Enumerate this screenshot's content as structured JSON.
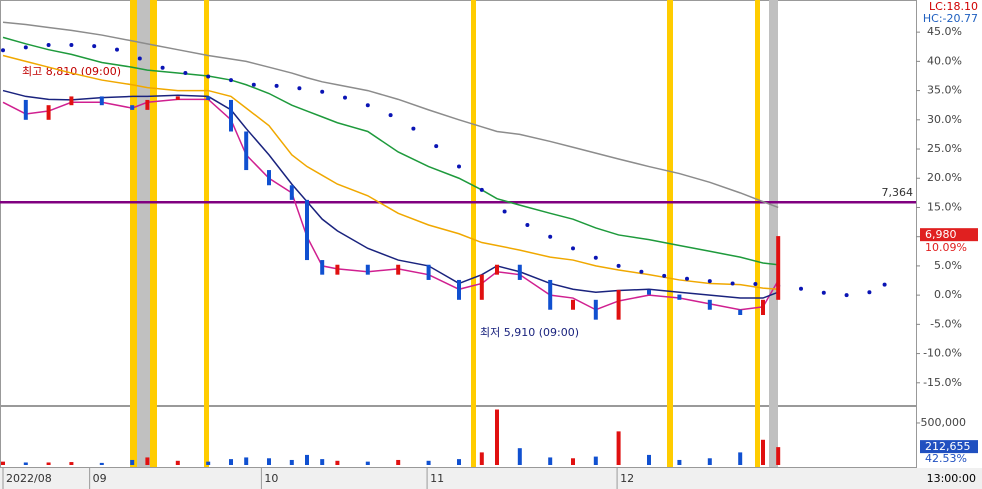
{
  "chart_data": {
    "type": "stock",
    "ylim": [
      -18.8,
      50.5
    ],
    "yticks": [
      {
        "value": 45,
        "label": "45.0%"
      },
      {
        "value": 40,
        "label": "40.0%"
      },
      {
        "value": 35,
        "label": "35.0%"
      },
      {
        "value": 30,
        "label": "30.0%"
      },
      {
        "value": 25,
        "label": "25.0%"
      },
      {
        "value": 20,
        "label": "20.0%"
      },
      {
        "value": 15,
        "label": "15.0%"
      },
      {
        "value": 10,
        "label": "10.0%"
      },
      {
        "value": 5,
        "label": "5.0%"
      },
      {
        "value": 0,
        "label": "0.0%"
      },
      {
        "value": -5,
        "label": "-5.0%"
      },
      {
        "value": -10,
        "label": "-10.0%"
      },
      {
        "value": -15,
        "label": "-15.0%"
      }
    ],
    "xlim": [
      0,
      120
    ],
    "xticks": [
      {
        "value": 0,
        "label": "2022/08"
      },
      {
        "value": 11.4,
        "label": "09"
      },
      {
        "value": 34,
        "label": "10"
      },
      {
        "value": 55.8,
        "label": "11"
      },
      {
        "value": 80.8,
        "label": "12"
      }
    ],
    "x": [
      0,
      3,
      6,
      9,
      13,
      17,
      19,
      23,
      27,
      30,
      32,
      35,
      38,
      40,
      42,
      44,
      48,
      52,
      56,
      60,
      63,
      65,
      68,
      72,
      75,
      78,
      81,
      85,
      89,
      93,
      97,
      100,
      102
    ],
    "series": [
      {
        "color": "#444444",
        "style": "price",
        "values": [
          33.4,
          30,
          32.5,
          34,
          32.5,
          31.7,
          33.4,
          34,
          33.4,
          28,
          21.4,
          18.8,
          16.3,
          6,
          3.5,
          5.2,
          3.5,
          5.2,
          2.6,
          -0.8,
          3.5,
          5.2,
          2.6,
          -2.5,
          -0.8,
          -4.2,
          0.9,
          0.1,
          -0.8,
          -2.5,
          -3.4,
          -0.8,
          10.1
        ]
      },
      {
        "color": "#d02090",
        "style": "line",
        "values": [
          33,
          31,
          31.5,
          33,
          33,
          32,
          33,
          33.5,
          33.5,
          30,
          24,
          20,
          17.5,
          10,
          5,
          4.5,
          4,
          4.5,
          3.5,
          1,
          2,
          4,
          3.5,
          0,
          -0.5,
          -2.5,
          -1,
          0,
          -0.5,
          -1.5,
          -2.5,
          -2,
          2.5
        ]
      },
      {
        "color": "#1a237e",
        "style": "line",
        "values": [
          35,
          34,
          33.5,
          33.4,
          33.8,
          34,
          34,
          34.2,
          34,
          31.7,
          28.5,
          24,
          19,
          16,
          13,
          11,
          8,
          6,
          5,
          2,
          3.5,
          5,
          4,
          2,
          1,
          0.5,
          0.8,
          1,
          0.5,
          0,
          -0.5,
          -0.5,
          0.5
        ]
      },
      {
        "color": "#f0a800",
        "style": "line",
        "values": [
          41,
          40,
          39,
          38,
          36.8,
          36,
          35.5,
          35,
          35,
          34,
          32,
          29,
          24,
          22,
          20.5,
          19,
          17,
          14,
          12,
          10.5,
          9,
          8.5,
          7.7,
          6.5,
          6,
          5,
          4.3,
          3.5,
          2.6,
          2,
          1.8,
          1.2,
          1
        ]
      },
      {
        "color": "#1e9a3c",
        "style": "line",
        "values": [
          44.1,
          43,
          42,
          41.2,
          39.8,
          39,
          38.5,
          38,
          37.5,
          36.8,
          36,
          34.5,
          32.5,
          31.5,
          30.5,
          29.5,
          28,
          24.5,
          22,
          20,
          18,
          16.5,
          15.4,
          14,
          13,
          11.5,
          10.3,
          9.5,
          8.5,
          7.5,
          6.5,
          5.5,
          5.2
        ]
      },
      {
        "color": "#8c8c8c",
        "style": "line",
        "values": [
          46.7,
          46.3,
          45.8,
          45.3,
          44.5,
          43.5,
          43,
          42,
          41,
          40.4,
          40,
          39,
          38,
          37.2,
          36.5,
          36,
          35,
          33.5,
          31.7,
          30,
          28.8,
          28,
          27.5,
          26.3,
          25.3,
          24.3,
          23.3,
          22,
          20.8,
          19.3,
          17.5,
          16,
          15
        ]
      },
      {
        "color": "#0a14b4",
        "style": "dots",
        "x": [
          0,
          3,
          6,
          9,
          12,
          15,
          18,
          21,
          24,
          27,
          30,
          33,
          36,
          39,
          42,
          45,
          48,
          51,
          54,
          57,
          60,
          63,
          66,
          69,
          72,
          75,
          78,
          81,
          84,
          87,
          90,
          93,
          96,
          99,
          102,
          105,
          108,
          111,
          114,
          116
        ],
        "values": [
          41.9,
          42.4,
          42.8,
          42.8,
          42.6,
          42,
          40.5,
          38.9,
          38,
          37.4,
          36.8,
          36,
          35.8,
          35.4,
          34.8,
          33.8,
          32.5,
          30.8,
          28.5,
          25.5,
          22,
          18,
          14.3,
          12,
          10,
          8,
          6.4,
          5,
          4,
          3.3,
          2.8,
          2.4,
          2,
          1.9,
          1.6,
          1.1,
          0.4,
          0,
          0.5,
          1.8
        ]
      }
    ],
    "ref_line": {
      "value": 15.9,
      "label": "7,364",
      "color": "#800080"
    },
    "last_price": "6,980",
    "last_change": {
      "value": 10.09,
      "label": "10.09%"
    },
    "lc": "LC:18.10",
    "hc": "HC:-20.77",
    "high_label": "최고 8,810 (09:00)",
    "low_label": "최저 5,910 (09:00)",
    "volume": {
      "ylim": [
        0,
        690000
      ],
      "yticks": [
        {
          "value": 500000,
          "label": "500,000"
        }
      ],
      "values": [
        40000,
        30000,
        30000,
        35000,
        25000,
        60000,
        90000,
        50000,
        40000,
        70000,
        90000,
        80000,
        60000,
        120000,
        70000,
        50000,
        40000,
        60000,
        50000,
        70000,
        150000,
        660000,
        200000,
        90000,
        80000,
        100000,
        400000,
        120000,
        60000,
        80000,
        150000,
        300000,
        212655
      ],
      "last": {
        "value": 212655,
        "label": "212,655"
      },
      "ratio": "42.53%"
    },
    "time": "13:00:00"
  }
}
